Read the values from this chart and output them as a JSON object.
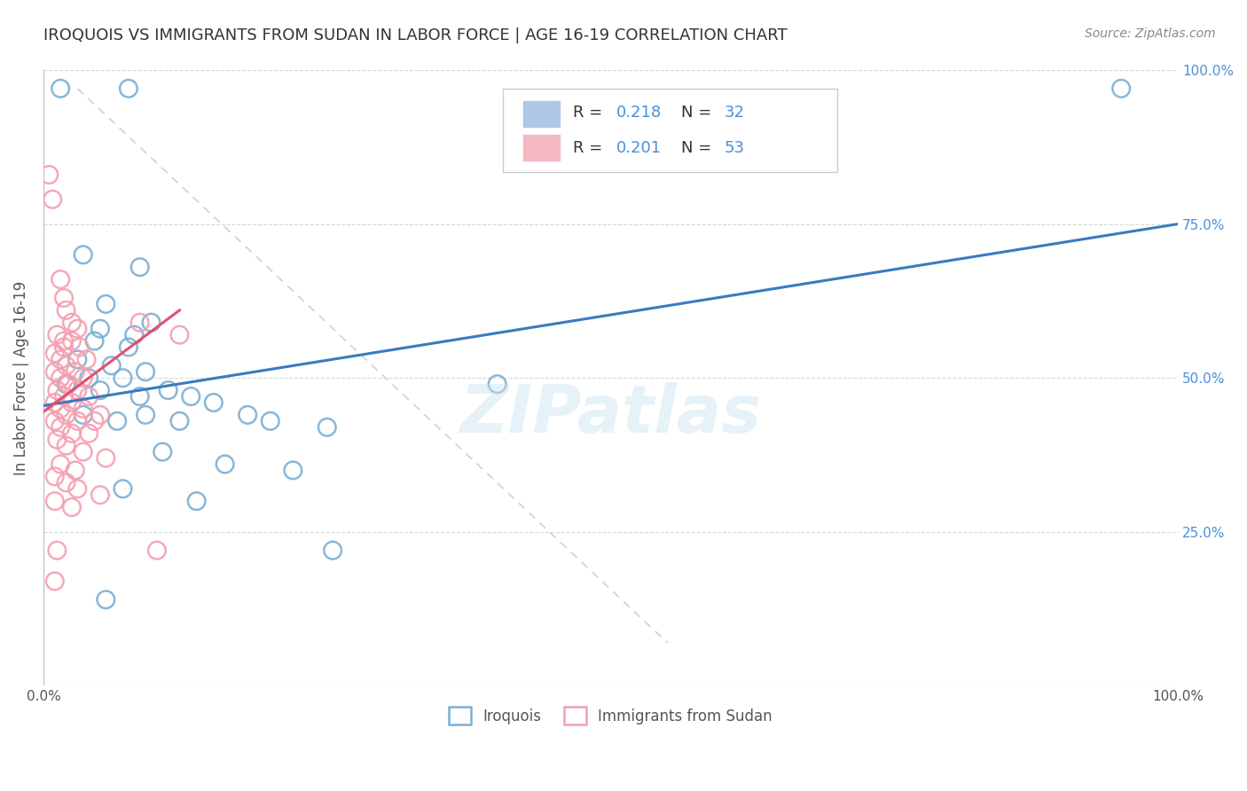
{
  "title": "IROQUOIS VS IMMIGRANTS FROM SUDAN IN LABOR FORCE | AGE 16-19 CORRELATION CHART",
  "source": "Source: ZipAtlas.com",
  "ylabel": "In Labor Force | Age 16-19",
  "blue_scatter": [
    [
      1.5,
      97
    ],
    [
      7.5,
      97
    ],
    [
      3.5,
      70
    ],
    [
      8.5,
      68
    ],
    [
      5.5,
      62
    ],
    [
      9.5,
      59
    ],
    [
      5.0,
      58
    ],
    [
      8.0,
      57
    ],
    [
      4.5,
      56
    ],
    [
      7.5,
      55
    ],
    [
      3.0,
      53
    ],
    [
      6.0,
      52
    ],
    [
      9.0,
      51
    ],
    [
      4.0,
      50
    ],
    [
      7.0,
      50
    ],
    [
      2.0,
      49
    ],
    [
      5.0,
      48
    ],
    [
      8.5,
      47
    ],
    [
      11.0,
      48
    ],
    [
      13.0,
      47
    ],
    [
      15.0,
      46
    ],
    [
      18.0,
      44
    ],
    [
      3.5,
      44
    ],
    [
      6.5,
      43
    ],
    [
      9.0,
      44
    ],
    [
      12.0,
      43
    ],
    [
      20.0,
      43
    ],
    [
      25.0,
      42
    ],
    [
      10.5,
      38
    ],
    [
      16.0,
      36
    ],
    [
      22.0,
      35
    ],
    [
      7.0,
      32
    ],
    [
      13.5,
      30
    ],
    [
      25.5,
      22
    ],
    [
      5.5,
      14
    ],
    [
      40.0,
      49
    ],
    [
      95.0,
      97
    ]
  ],
  "pink_scatter": [
    [
      0.5,
      83
    ],
    [
      0.8,
      79
    ],
    [
      1.5,
      66
    ],
    [
      1.8,
      63
    ],
    [
      2.0,
      61
    ],
    [
      2.5,
      59
    ],
    [
      3.0,
      58
    ],
    [
      1.2,
      57
    ],
    [
      1.8,
      56
    ],
    [
      2.5,
      56
    ],
    [
      3.2,
      55
    ],
    [
      1.0,
      54
    ],
    [
      1.5,
      53
    ],
    [
      2.0,
      52
    ],
    [
      2.8,
      51
    ],
    [
      3.5,
      50
    ],
    [
      1.0,
      51
    ],
    [
      1.5,
      50
    ],
    [
      2.2,
      49
    ],
    [
      3.0,
      48
    ],
    [
      4.0,
      47
    ],
    [
      1.2,
      48
    ],
    [
      1.8,
      47
    ],
    [
      2.5,
      46
    ],
    [
      3.5,
      45
    ],
    [
      5.0,
      44
    ],
    [
      1.0,
      46
    ],
    [
      1.5,
      45
    ],
    [
      2.0,
      44
    ],
    [
      3.0,
      43
    ],
    [
      4.5,
      43
    ],
    [
      1.0,
      43
    ],
    [
      1.5,
      42
    ],
    [
      2.5,
      41
    ],
    [
      4.0,
      41
    ],
    [
      1.2,
      40
    ],
    [
      2.0,
      39
    ],
    [
      3.5,
      38
    ],
    [
      5.5,
      37
    ],
    [
      1.5,
      36
    ],
    [
      2.8,
      35
    ],
    [
      1.0,
      34
    ],
    [
      2.0,
      33
    ],
    [
      3.0,
      32
    ],
    [
      5.0,
      31
    ],
    [
      1.0,
      30
    ],
    [
      2.5,
      29
    ],
    [
      1.2,
      22
    ],
    [
      10.0,
      22
    ],
    [
      1.0,
      17
    ],
    [
      8.5,
      59
    ],
    [
      12.0,
      57
    ],
    [
      1.8,
      55
    ],
    [
      3.8,
      53
    ]
  ],
  "blue_line": {
    "x0": 0.0,
    "y0": 45.5,
    "x1": 100.0,
    "y1": 75.0
  },
  "pink_line": {
    "x0": 0.0,
    "y0": 44.5,
    "x1": 12.0,
    "y1": 61.0
  },
  "diag_line": {
    "x0": 3.0,
    "y0": 97.0,
    "x1": 55.0,
    "y1": 7.0
  },
  "watermark": "ZIPatlas",
  "blue_color": "#7bafd4",
  "pink_color": "#f4a0b0",
  "blue_line_color": "#3a7bbf",
  "pink_line_color": "#e05070",
  "title_color": "#333333",
  "axis_label_color": "#555555",
  "right_tick_color": "#4a90d9",
  "grid_color": "#cccccc",
  "background_color": "#ffffff",
  "legend_text_color": "#4a90d9",
  "legend_patch_blue": "#aec6e8",
  "legend_patch_pink": "#f4b8c1",
  "ytick_vals": [
    0,
    25,
    50,
    75,
    100
  ],
  "ytick_labels": [
    "",
    "25.0%",
    "50.0%",
    "75.0%",
    "100.0%"
  ],
  "xtick_vals": [
    0,
    100
  ],
  "xtick_labels": [
    "0.0%",
    "100.0%"
  ]
}
